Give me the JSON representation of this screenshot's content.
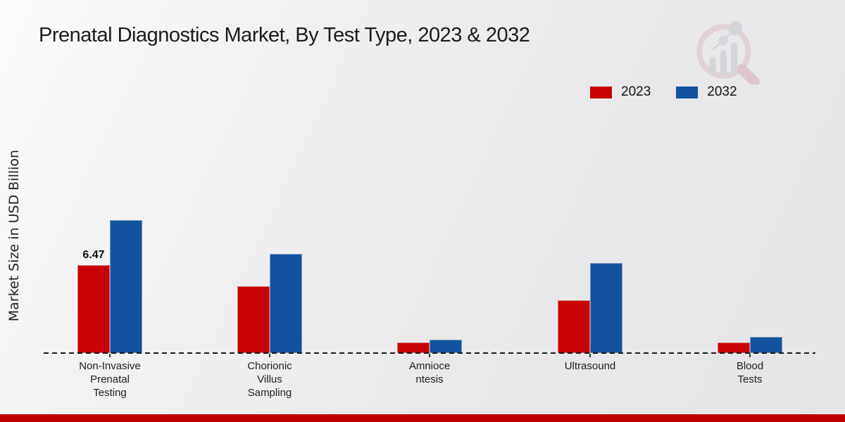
{
  "title": "Prenatal Diagnostics Market, By Test Type, 2023 & 2032",
  "watermark": "market-research-future-logo",
  "footer": {
    "bar_color": "#c00000"
  },
  "chart_data": {
    "type": "bar",
    "title": "Prenatal Diagnostics Market, By Test Type, 2023 & 2032",
    "xlabel": "",
    "ylabel": "Market Size in USD Billion",
    "categories": [
      "Non-Invasive\nPrenatal\nTesting",
      "Chorionic\nVillus\nSampling",
      "Amnioce\nntesis",
      "Ultrasound",
      "Blood\nTests"
    ],
    "series": [
      {
        "name": "2023",
        "color": "#c80202",
        "values": [
          6.47,
          4.9,
          0.8,
          3.9,
          0.8
        ],
        "labels": [
          "6.47",
          null,
          null,
          null,
          null
        ]
      },
      {
        "name": "2032",
        "color": "#12529e",
        "values": [
          9.8,
          7.3,
          1.0,
          6.6,
          1.2
        ],
        "labels": [
          null,
          null,
          null,
          null,
          null
        ]
      }
    ],
    "ylim": [
      0,
      10.5
    ],
    "grid": false,
    "baseline_style": "dashed",
    "legend_position": "top-right"
  }
}
